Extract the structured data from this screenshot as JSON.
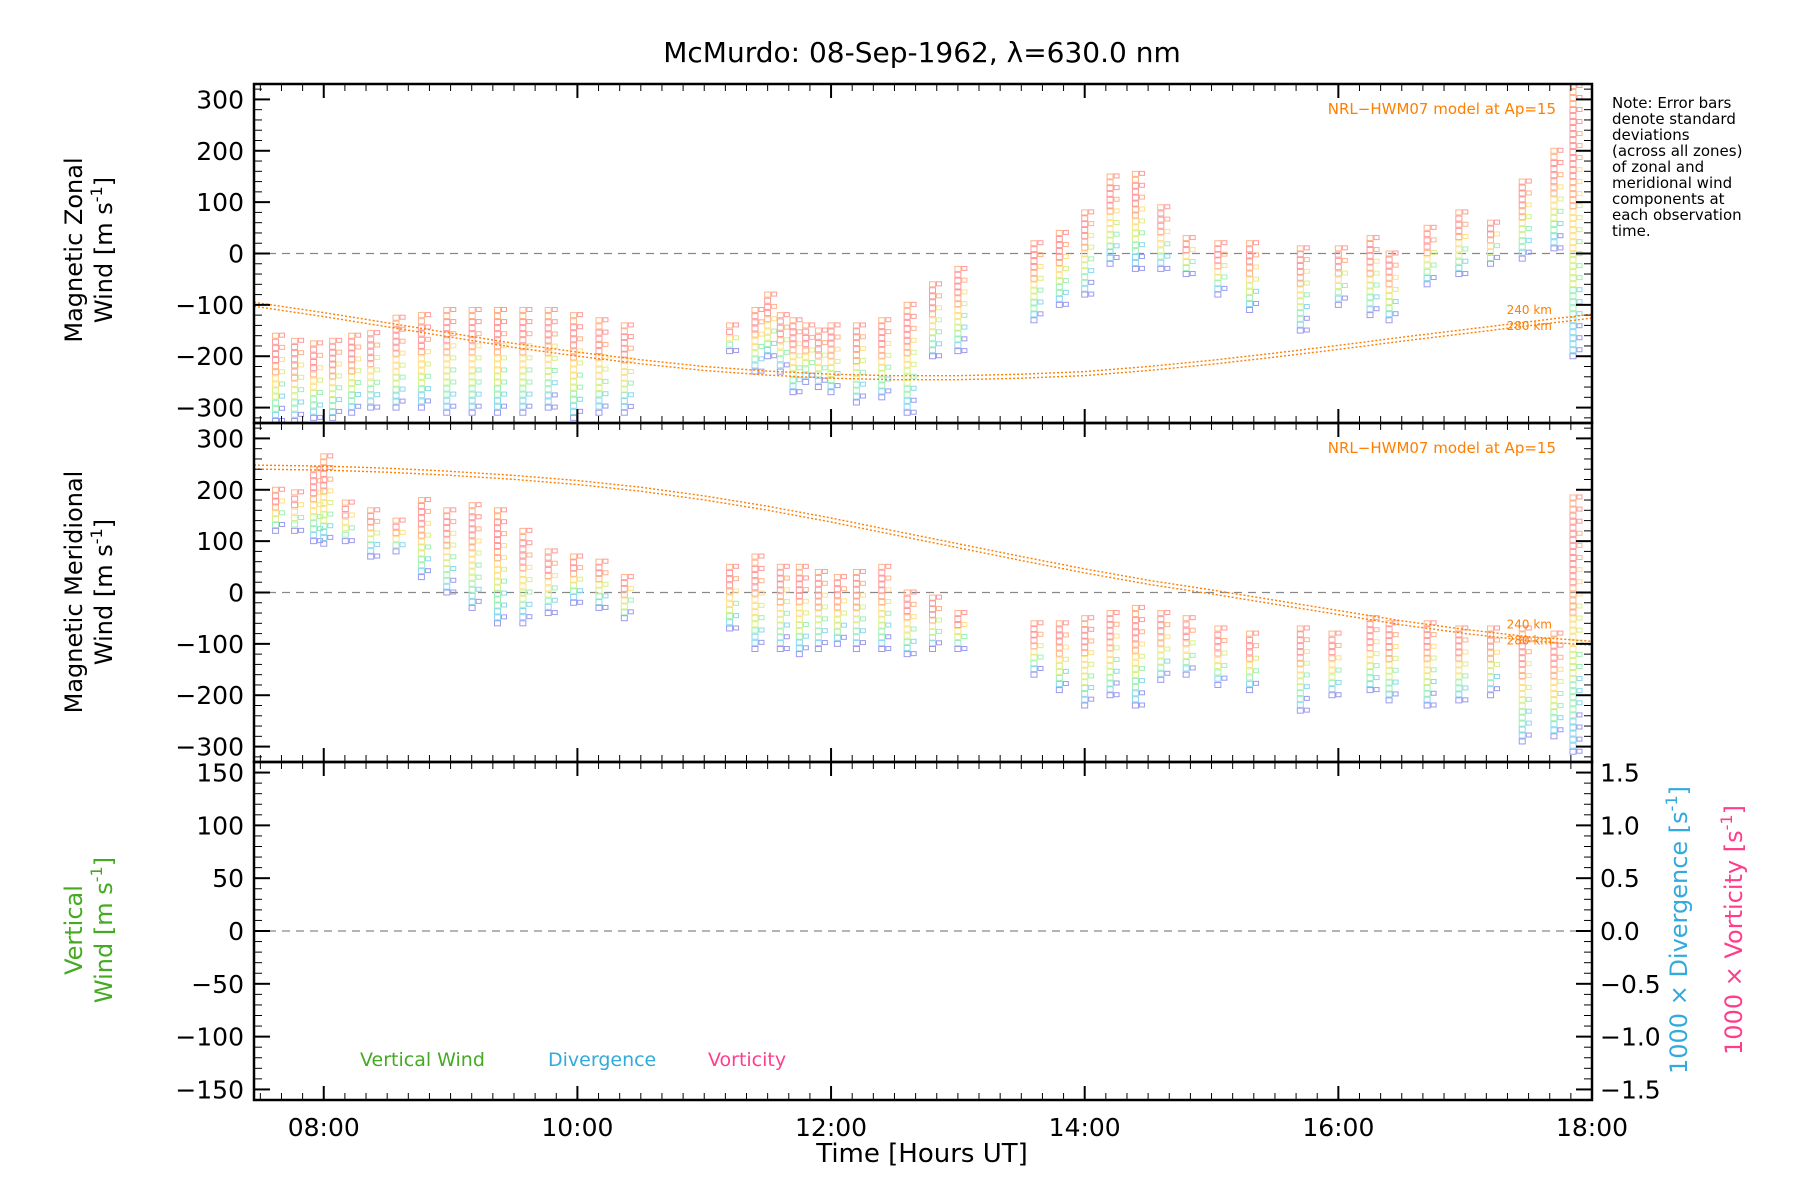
{
  "chart_data": [
    {
      "type": "scatter",
      "panel": "zonal",
      "title": "McMurdo: 08-Sep-1962, λ=630.0 nm",
      "ylabel_line1": "Magnetic Zonal",
      "ylabel_line2": "Wind [m s",
      "ylabel_sup": "-1",
      "ylabel_end": "]",
      "xlim": [
        7.45,
        18.0
      ],
      "ylim": [
        -330,
        330
      ],
      "yticks": [
        "300",
        "200",
        "100",
        "0",
        "−100",
        "−200",
        "−300"
      ],
      "ytick_values": [
        300,
        200,
        100,
        0,
        -100,
        -200,
        -300
      ],
      "model_label": "NRL−HWM07 model at Ap=15",
      "model_heights": [
        "240 km",
        "280 km"
      ],
      "model_curve": {
        "x": [
          7.45,
          8.0,
          8.5,
          9.0,
          9.5,
          10.0,
          10.5,
          11.0,
          11.5,
          12.0,
          12.5,
          13.0,
          13.5,
          14.0,
          14.5,
          15.0,
          15.5,
          16.0,
          16.5,
          17.0,
          17.5,
          18.0
        ],
        "y": [
          -95,
          -115,
          -135,
          -155,
          -175,
          -192,
          -207,
          -220,
          -229,
          -235,
          -238,
          -238,
          -235,
          -230,
          -220,
          -208,
          -194,
          -179,
          -163,
          -148,
          -133,
          -118
        ]
      },
      "observations": [
        {
          "t": 7.62,
          "top": -160,
          "bottom": -330,
          "outlier": -330
        },
        {
          "t": 7.77,
          "top": -170,
          "bottom": -330
        },
        {
          "t": 7.92,
          "top": -175,
          "bottom": -320
        },
        {
          "t": 8.07,
          "top": -170,
          "bottom": -320
        },
        {
          "t": 8.22,
          "top": -160,
          "bottom": -310
        },
        {
          "t": 8.37,
          "top": -155,
          "bottom": -300
        },
        {
          "t": 8.57,
          "top": -125,
          "bottom": -300
        },
        {
          "t": 8.77,
          "top": -120,
          "bottom": -300
        },
        {
          "t": 8.97,
          "top": -110,
          "bottom": -310
        },
        {
          "t": 9.17,
          "top": -110,
          "bottom": -310,
          "outlier": -310
        },
        {
          "t": 9.37,
          "top": -110,
          "bottom": -310
        },
        {
          "t": 9.57,
          "top": -110,
          "bottom": -310
        },
        {
          "t": 9.77,
          "top": -110,
          "bottom": -300
        },
        {
          "t": 9.97,
          "top": -120,
          "bottom": -320
        },
        {
          "t": 10.17,
          "top": -130,
          "bottom": -310
        },
        {
          "t": 10.37,
          "top": -140,
          "bottom": -310
        },
        {
          "t": 11.2,
          "top": -140,
          "bottom": -190
        },
        {
          "t": 11.4,
          "top": -110,
          "bottom": -230
        },
        {
          "t": 11.5,
          "top": -80,
          "bottom": -200
        },
        {
          "t": 11.6,
          "top": -120,
          "bottom": -230
        },
        {
          "t": 11.7,
          "top": -130,
          "bottom": -270
        },
        {
          "t": 11.8,
          "top": -140,
          "bottom": -250
        },
        {
          "t": 11.9,
          "top": -150,
          "bottom": -260
        },
        {
          "t": 12.0,
          "top": -140,
          "bottom": -270
        },
        {
          "t": 12.2,
          "top": -140,
          "bottom": -290
        },
        {
          "t": 12.4,
          "top": -130,
          "bottom": -280
        },
        {
          "t": 12.6,
          "top": -100,
          "bottom": -310
        },
        {
          "t": 12.8,
          "top": -60,
          "bottom": -200
        },
        {
          "t": 13.0,
          "top": -30,
          "bottom": -190
        },
        {
          "t": 13.6,
          "top": 20,
          "bottom": -130
        },
        {
          "t": 13.8,
          "top": 40,
          "bottom": -100
        },
        {
          "t": 14.0,
          "top": 80,
          "bottom": -80
        },
        {
          "t": 14.2,
          "top": 150,
          "bottom": -20
        },
        {
          "t": 14.4,
          "top": 155,
          "bottom": -30
        },
        {
          "t": 14.6,
          "top": 90,
          "bottom": -30
        },
        {
          "t": 14.8,
          "top": 30,
          "bottom": -40
        },
        {
          "t": 15.05,
          "top": 20,
          "bottom": -80
        },
        {
          "t": 15.3,
          "top": 20,
          "bottom": -110
        },
        {
          "t": 15.7,
          "top": 10,
          "bottom": -150
        },
        {
          "t": 16.0,
          "top": 10,
          "bottom": -100
        },
        {
          "t": 16.25,
          "top": 30,
          "bottom": -120
        },
        {
          "t": 16.4,
          "top": 0,
          "bottom": -130
        },
        {
          "t": 16.7,
          "top": 50,
          "bottom": -60
        },
        {
          "t": 16.95,
          "top": 80,
          "bottom": -40
        },
        {
          "t": 17.2,
          "top": 60,
          "bottom": -20
        },
        {
          "t": 17.45,
          "top": 140,
          "bottom": -10
        },
        {
          "t": 17.7,
          "top": 200,
          "bottom": 10
        },
        {
          "t": 17.85,
          "top": 330,
          "bottom": -200
        }
      ]
    },
    {
      "type": "scatter",
      "panel": "meridional",
      "ylabel_line1": "Magnetic Meridional",
      "ylabel_line2": "Wind [m s",
      "ylabel_sup": "-1",
      "ylabel_end": "]",
      "xlim": [
        7.45,
        18.0
      ],
      "ylim": [
        -330,
        330
      ],
      "yticks": [
        "300",
        "200",
        "100",
        "0",
        "−100",
        "−200",
        "−300"
      ],
      "ytick_values": [
        300,
        200,
        100,
        0,
        -100,
        -200,
        -300
      ],
      "model_label": "NRL−HWM07 model at Ap=15",
      "model_heights": [
        "240 km",
        "280 km"
      ],
      "model_curve": {
        "x": [
          7.45,
          8.0,
          8.5,
          9.0,
          9.5,
          10.0,
          10.5,
          11.0,
          11.5,
          12.0,
          12.5,
          13.0,
          13.5,
          14.0,
          14.5,
          15.0,
          15.5,
          16.0,
          16.5,
          17.0,
          17.5,
          18.0
        ],
        "y": [
          248,
          246,
          242,
          236,
          228,
          218,
          205,
          188,
          168,
          145,
          120,
          95,
          70,
          46,
          24,
          5,
          -15,
          -35,
          -55,
          -72,
          -86,
          -95
        ]
      },
      "observations": [
        {
          "t": 7.62,
          "top": 200,
          "bottom": 120
        },
        {
          "t": 7.77,
          "top": 195,
          "bottom": 120
        },
        {
          "t": 7.92,
          "top": 240,
          "bottom": 100
        },
        {
          "t": 8.0,
          "top": 265,
          "bottom": 95
        },
        {
          "t": 8.17,
          "top": 175,
          "bottom": 100
        },
        {
          "t": 8.37,
          "top": 160,
          "bottom": 70
        },
        {
          "t": 8.57,
          "top": 140,
          "bottom": 80
        },
        {
          "t": 8.77,
          "top": 180,
          "bottom": 30
        },
        {
          "t": 8.97,
          "top": 160,
          "bottom": 0
        },
        {
          "t": 9.17,
          "top": 170,
          "bottom": -30
        },
        {
          "t": 9.37,
          "top": 160,
          "bottom": -60
        },
        {
          "t": 9.57,
          "top": 120,
          "bottom": -60
        },
        {
          "t": 9.77,
          "top": 80,
          "bottom": -40
        },
        {
          "t": 9.97,
          "top": 70,
          "bottom": -20
        },
        {
          "t": 10.17,
          "top": 60,
          "bottom": -30
        },
        {
          "t": 10.37,
          "top": 30,
          "bottom": -50
        },
        {
          "t": 11.2,
          "top": 50,
          "bottom": -70
        },
        {
          "t": 11.4,
          "top": 70,
          "bottom": -110
        },
        {
          "t": 11.6,
          "top": 50,
          "bottom": -110
        },
        {
          "t": 11.75,
          "top": 50,
          "bottom": -120
        },
        {
          "t": 11.9,
          "top": 40,
          "bottom": -110
        },
        {
          "t": 12.05,
          "top": 30,
          "bottom": -100
        },
        {
          "t": 12.2,
          "top": 40,
          "bottom": -110
        },
        {
          "t": 12.4,
          "top": 50,
          "bottom": -110
        },
        {
          "t": 12.6,
          "top": 0,
          "bottom": -120
        },
        {
          "t": 12.8,
          "top": -10,
          "bottom": -110
        },
        {
          "t": 13.0,
          "top": -40,
          "bottom": -110
        },
        {
          "t": 13.6,
          "top": -60,
          "bottom": -160
        },
        {
          "t": 13.8,
          "top": -60,
          "bottom": -190
        },
        {
          "t": 14.0,
          "top": -50,
          "bottom": -220
        },
        {
          "t": 14.2,
          "top": -40,
          "bottom": -200
        },
        {
          "t": 14.4,
          "top": -30,
          "bottom": -220
        },
        {
          "t": 14.6,
          "top": -40,
          "bottom": -170
        },
        {
          "t": 14.8,
          "top": -50,
          "bottom": -160
        },
        {
          "t": 15.05,
          "top": -70,
          "bottom": -180
        },
        {
          "t": 15.3,
          "top": -80,
          "bottom": -190
        },
        {
          "t": 15.7,
          "top": -70,
          "bottom": -230
        },
        {
          "t": 15.95,
          "top": -80,
          "bottom": -200
        },
        {
          "t": 16.25,
          "top": -50,
          "bottom": -190
        },
        {
          "t": 16.4,
          "top": -60,
          "bottom": -210
        },
        {
          "t": 16.7,
          "top": -60,
          "bottom": -220
        },
        {
          "t": 16.95,
          "top": -70,
          "bottom": -210
        },
        {
          "t": 17.2,
          "top": -70,
          "bottom": -200
        },
        {
          "t": 17.45,
          "top": -70,
          "bottom": -290
        },
        {
          "t": 17.7,
          "top": -80,
          "bottom": -280
        },
        {
          "t": 17.85,
          "top": 185,
          "bottom": -310
        }
      ]
    },
    {
      "type": "line",
      "panel": "vertical",
      "xlabel": "Time [Hours UT]",
      "ylabel_line1": "Vertical",
      "ylabel_line2": "Wind [m s",
      "ylabel_sup": "-1",
      "ylabel_end": "]",
      "xlim": [
        7.45,
        18.0
      ],
      "ylim": [
        -160,
        160
      ],
      "yticks": [
        "150",
        "100",
        "50",
        "0",
        "−50",
        "−100",
        "−150"
      ],
      "ytick_values": [
        150,
        100,
        50,
        0,
        -50,
        -100,
        -150
      ],
      "right_yticks": [
        "1.5",
        "1.0",
        "0.5",
        "0.0",
        "−0.5",
        "−1.0",
        "−1.5"
      ],
      "right_ytick_values": [
        1.5,
        1.0,
        0.5,
        0.0,
        -0.5,
        -1.0,
        -1.5
      ],
      "right_ylabel_divergence": "1000 × Divergence [s",
      "right_ylabel_vorticity": "1000 × Vorticity [s",
      "right_ylabel_sup": "-1",
      "right_ylabel_end": "]",
      "xticks": [
        "08:00",
        "10:00",
        "12:00",
        "14:00",
        "16:00",
        "18:00"
      ],
      "xtick_values": [
        8,
        10,
        12,
        14,
        16,
        18
      ],
      "legend": [
        "Vertical Wind",
        "Divergence",
        "Vorticity"
      ],
      "series": []
    }
  ],
  "note": [
    "Note: Error bars",
    "denote standard",
    "deviations",
    "(across all zones)",
    "of zonal and",
    "meridional wind",
    "components at",
    "each observation",
    "time."
  ],
  "colors": {
    "model": "#ff7f00",
    "vertical": "#44aa22",
    "divergence": "#33aadd",
    "vorticity": "#ff3d8b",
    "gradient": [
      "#ff9a9a",
      "#ffb38a",
      "#ffe08a",
      "#d8f08a",
      "#9ff0b8",
      "#8ad8f0",
      "#9a9af0"
    ]
  }
}
